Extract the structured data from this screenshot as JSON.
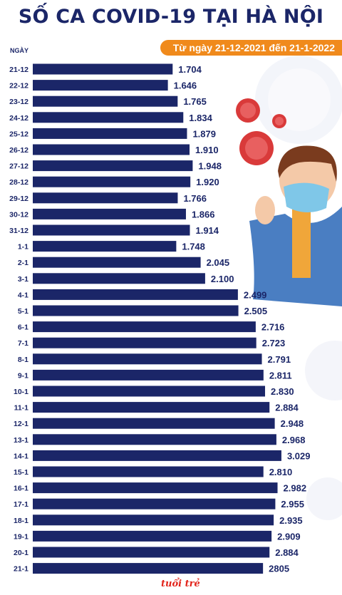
{
  "header": {
    "title": "SỐ CA COVID-19 TẠI HÀ NỘI",
    "subtitle": "Từ ngày 21-12-2021 đến 21-1-2022",
    "ylabel": "NGÀY"
  },
  "logo": {
    "text": "tuổi trẻ"
  },
  "colors": {
    "bar": "#1b2668",
    "accent": "#f08a1c",
    "virus": "#d93a3a"
  },
  "chart_data": {
    "type": "bar",
    "orientation": "horizontal",
    "title": "SỐ CA COVID-19 TẠI HÀ NỘI",
    "subtitle": "Từ ngày 21-12-2021 đến 21-1-2022",
    "ylabel": "NGÀY",
    "xlabel": "",
    "xlim": [
      0,
      3500
    ],
    "categories": [
      "21-12",
      "22-12",
      "23-12",
      "24-12",
      "25-12",
      "26-12",
      "27-12",
      "28-12",
      "29-12",
      "30-12",
      "31-12",
      "1-1",
      "2-1",
      "3-1",
      "4-1",
      "5-1",
      "6-1",
      "7-1",
      "8-1",
      "9-1",
      "10-1",
      "11-1",
      "12-1",
      "13-1",
      "14-1",
      "15-1",
      "16-1",
      "17-1",
      "18-1",
      "19-1",
      "20-1",
      "21-1"
    ],
    "values": [
      1704,
      1646,
      1765,
      1834,
      1879,
      1910,
      1948,
      1920,
      1766,
      1866,
      1914,
      1748,
      2045,
      2100,
      2499,
      2505,
      2716,
      2723,
      2791,
      2811,
      2830,
      2884,
      2948,
      2968,
      3029,
      2810,
      2982,
      2955,
      2935,
      2909,
      2884,
      2805
    ],
    "labels": [
      "1.704",
      "1.646",
      "1.765",
      "1.834",
      "1.879",
      "1.910",
      "1.948",
      "1.920",
      "1.766",
      "1.866",
      "1.914",
      "1.748",
      "2.045",
      "2.100",
      "2.499",
      "2.505",
      "2.716",
      "2.723",
      "2.791",
      "2.811",
      "2.830",
      "2.884",
      "2.948",
      "2.968",
      "3.029",
      "2.810",
      "2.982",
      "2.955",
      "2.935",
      "2.909",
      "2.884",
      "2805"
    ],
    "grid": false,
    "legend": "none"
  }
}
